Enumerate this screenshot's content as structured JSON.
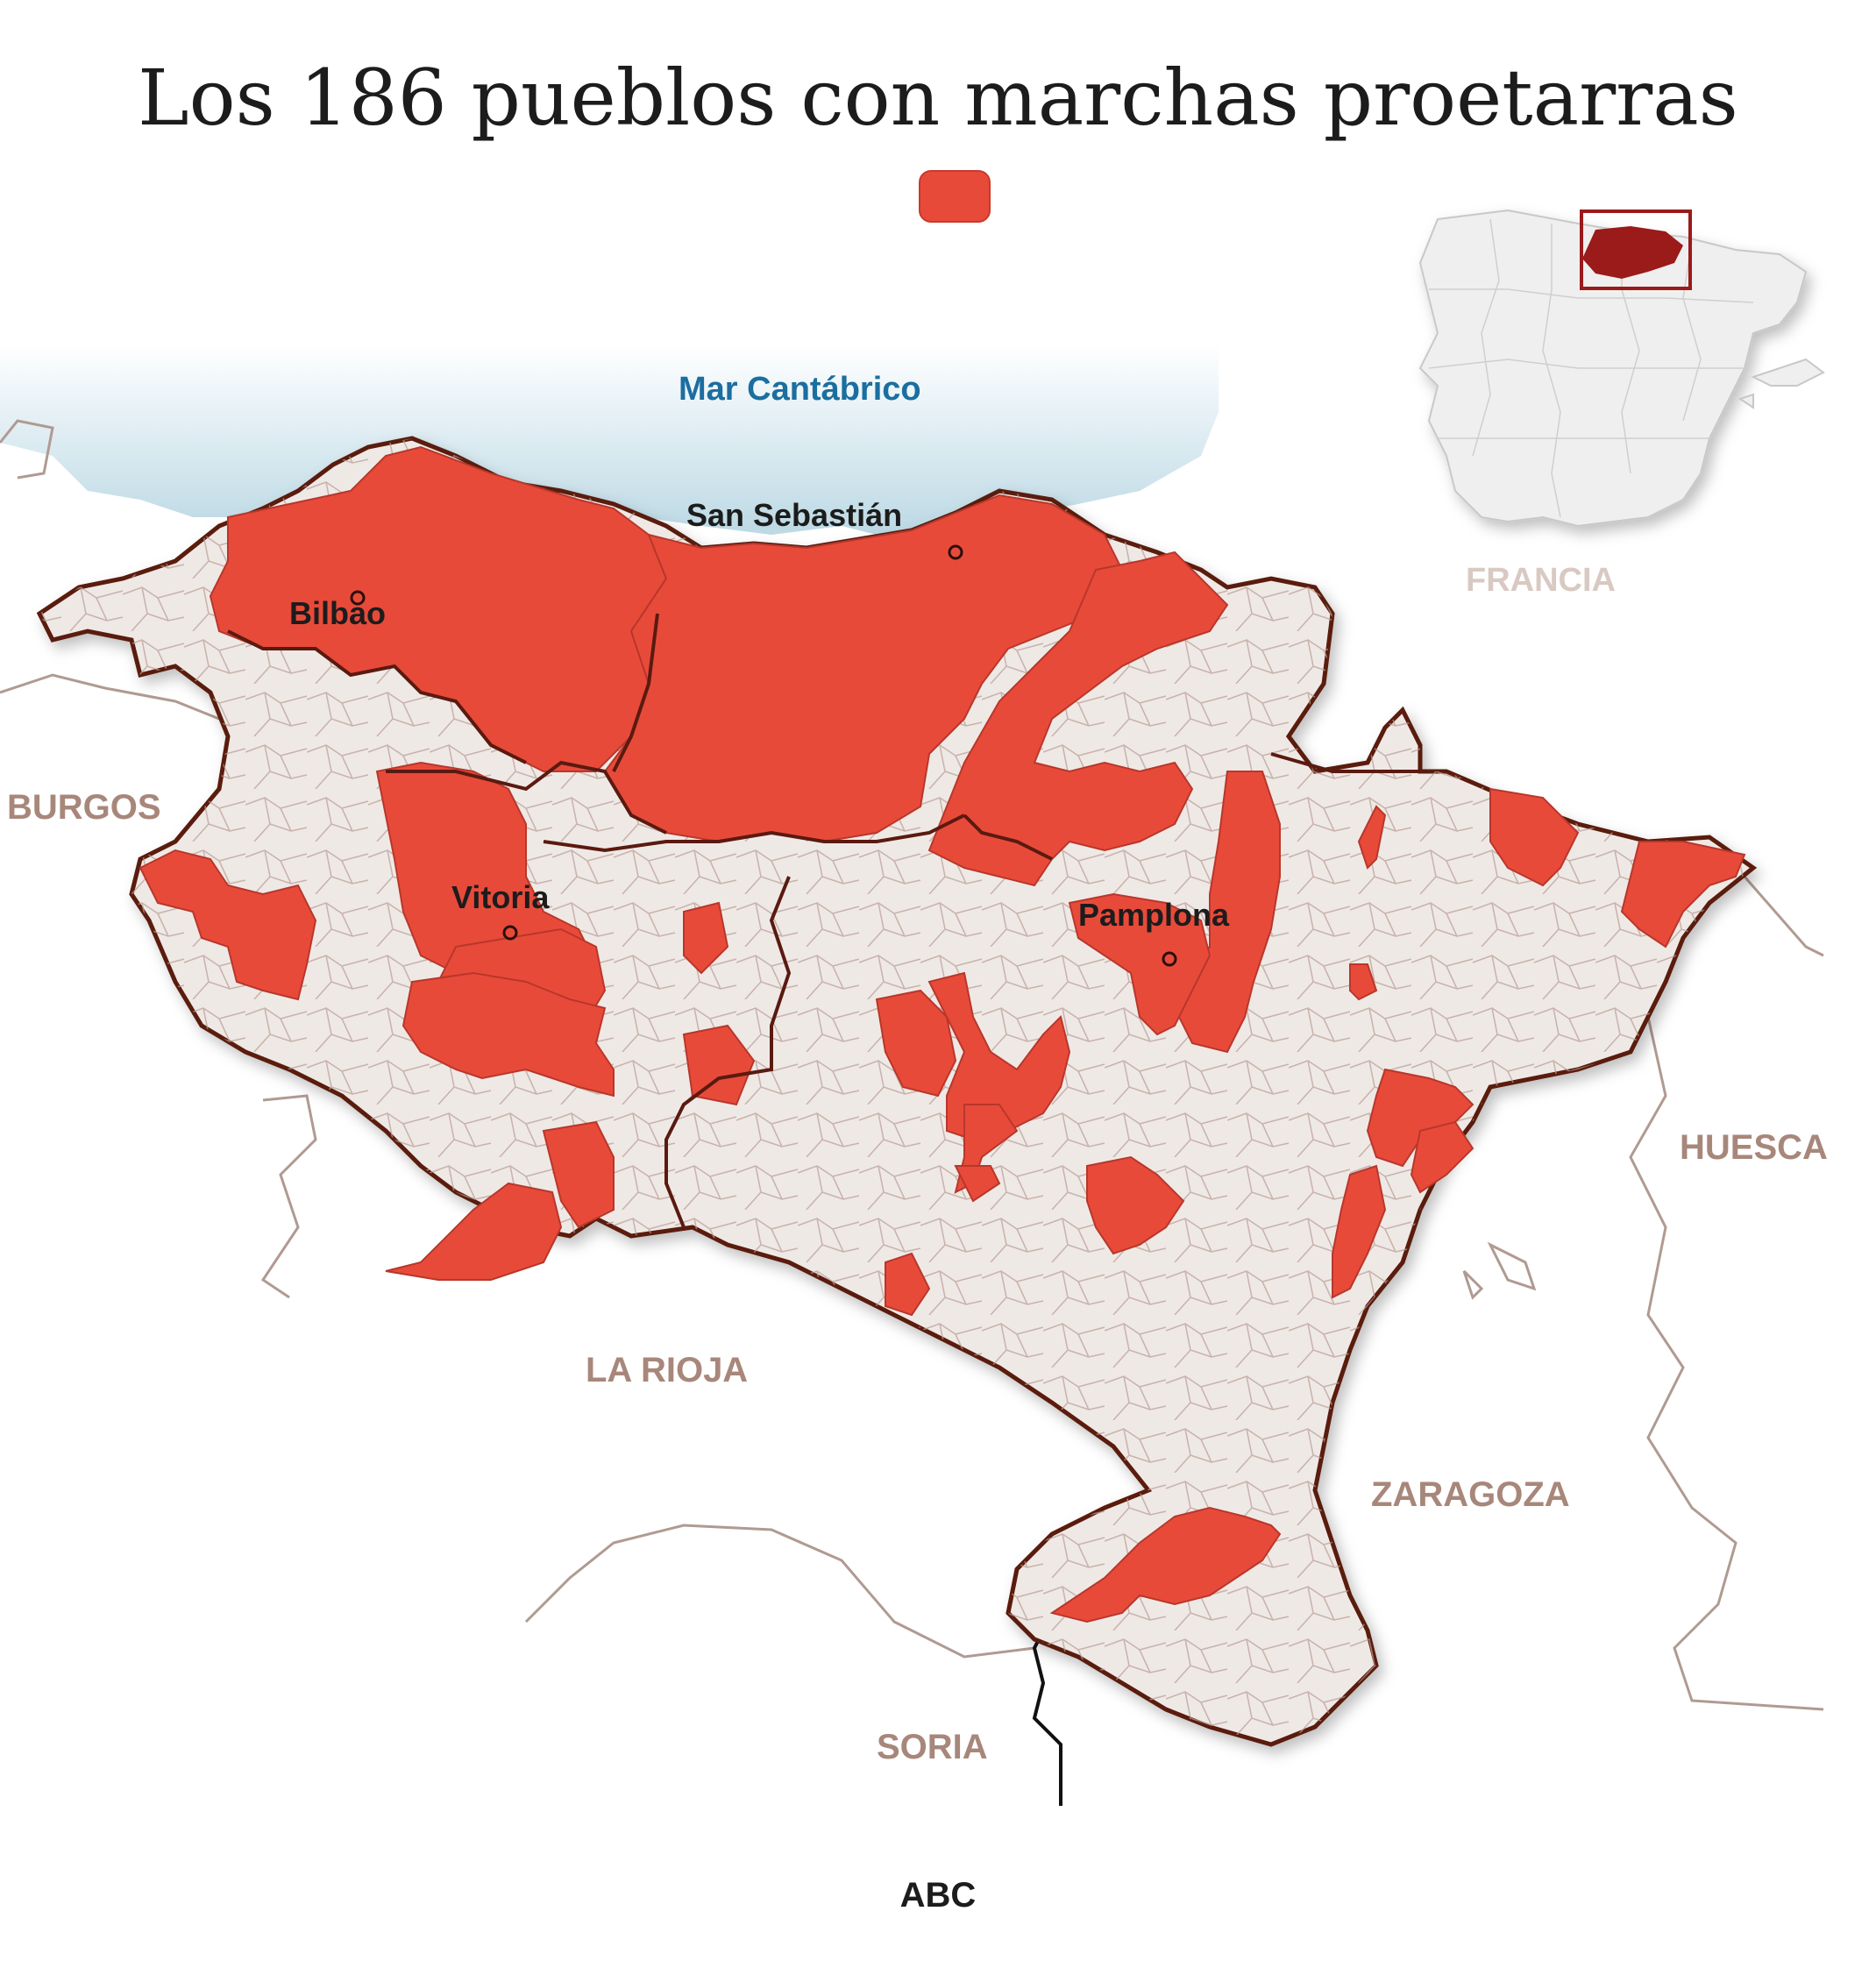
{
  "title": "Los 186 pueblos con marchas proetarras",
  "source": "ABC",
  "colors": {
    "highlight": "#e84a3a",
    "territory": "#efe9e6",
    "border": "#5a1a10",
    "sea_label": "#1b6ea0",
    "neighbor_label": "#a8877b",
    "inset_box": "#9b1a1a"
  },
  "labels": {
    "sea": "Mar Cantábrico",
    "france": "FRANCIA",
    "burgos": "BURGOS",
    "huesca": "HUESCA",
    "la_rioja": "LA RIOJA",
    "zaragoza": "ZARAGOZA",
    "soria": "SORIA"
  },
  "cities": {
    "bilbao": "Bilbao",
    "san_sebastian": "San Sebastián",
    "vitoria": "Vitoria",
    "pamplona": "Pamplona"
  }
}
